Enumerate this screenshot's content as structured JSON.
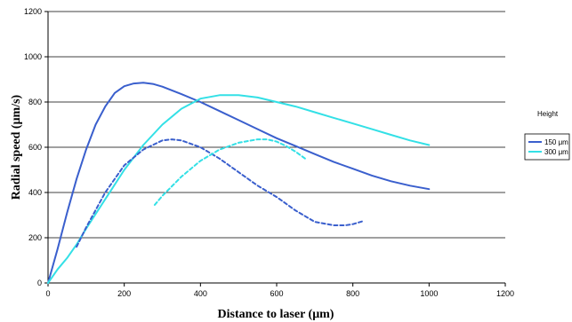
{
  "chart_data": {
    "type": "line",
    "xlabel": "Distance to laser (μm)",
    "ylabel": "Radial speed (μm/s)",
    "xlim": [
      0,
      1200
    ],
    "ylim": [
      0,
      1200
    ],
    "xticks": [
      0,
      200,
      400,
      600,
      800,
      1000,
      1200
    ],
    "yticks": [
      0,
      200,
      400,
      600,
      800,
      1000,
      1200
    ],
    "grid": "horizontal",
    "legend": {
      "title": "Height",
      "position": "right",
      "entries": [
        {
          "label": "150 μm",
          "color": "#3a5fcd"
        },
        {
          "label": "300 μm",
          "color": "#33e0e6"
        }
      ]
    },
    "series": [
      {
        "name": "150 μm",
        "color": "#3a5fcd",
        "style": "solid",
        "x": [
          0,
          25,
          50,
          75,
          100,
          125,
          150,
          175,
          200,
          225,
          250,
          275,
          300,
          350,
          400,
          450,
          500,
          550,
          600,
          650,
          700,
          750,
          800,
          850,
          900,
          950,
          1000
        ],
        "y": [
          0,
          150,
          310,
          460,
          590,
          700,
          780,
          840,
          870,
          882,
          885,
          880,
          868,
          835,
          800,
          760,
          720,
          680,
          640,
          605,
          570,
          535,
          505,
          475,
          450,
          430,
          415
        ]
      },
      {
        "name": "300 μm",
        "color": "#33e0e6",
        "style": "solid",
        "x": [
          0,
          25,
          50,
          75,
          100,
          150,
          200,
          250,
          300,
          350,
          400,
          450,
          500,
          550,
          600,
          650,
          700,
          750,
          800,
          850,
          900,
          950,
          1000
        ],
        "y": [
          0,
          60,
          110,
          170,
          240,
          370,
          500,
          610,
          700,
          770,
          815,
          830,
          830,
          820,
          800,
          780,
          755,
          730,
          705,
          680,
          655,
          630,
          610
        ]
      },
      {
        "color": "#3a5fcd",
        "style": "dashed",
        "x": [
          75,
          100,
          150,
          200,
          250,
          300,
          325,
          350,
          400,
          450,
          500,
          550,
          600,
          650,
          700,
          750,
          780,
          800,
          830
        ],
        "y": [
          160,
          245,
          400,
          520,
          590,
          630,
          635,
          630,
          600,
          550,
          490,
          430,
          380,
          320,
          270,
          255,
          255,
          260,
          275
        ]
      },
      {
        "color": "#33e0e6",
        "style": "dashed",
        "x": [
          280,
          300,
          350,
          400,
          450,
          500,
          550,
          575,
          600,
          625,
          650,
          675
        ],
        "y": [
          345,
          385,
          470,
          540,
          590,
          620,
          635,
          635,
          625,
          605,
          580,
          550
        ]
      }
    ]
  }
}
